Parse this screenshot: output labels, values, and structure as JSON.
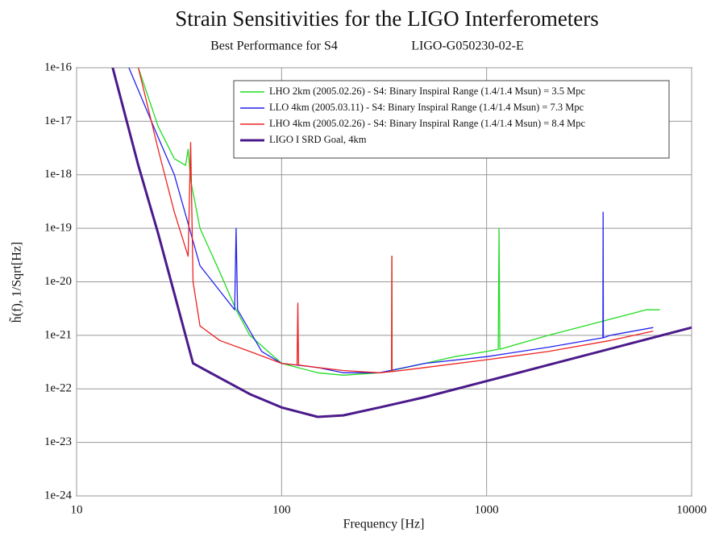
{
  "chart_data": {
    "type": "line",
    "title": "Strain Sensitivities for the LIGO Interferometers",
    "subtitle": "Best Performance for S4",
    "document_id": "LIGO-G050230-02-E",
    "xlabel": "Frequency [Hz]",
    "ylabel": "h̃(f), 1/Sqrt[Hz]",
    "xscale": "log",
    "yscale": "log",
    "xlim": [
      10,
      10000
    ],
    "ylim": [
      1e-24,
      1e-16
    ],
    "xticks": [
      10,
      100,
      1000,
      10000
    ],
    "yticks": [
      1e-16,
      1e-17,
      1e-18,
      1e-19,
      1e-20,
      1e-21,
      1e-22,
      1e-23,
      1e-24
    ],
    "grid": true,
    "legend": "upper right",
    "series": [
      {
        "name": "LHO 2km (2005.02.26) - S4: Binary Inspiral Range (1.4/1.4 Msun) = 3.5 Mpc",
        "color": "#22dd22",
        "x": [
          20,
          25,
          30,
          34,
          35,
          36,
          40,
          50,
          60,
          70,
          100,
          150,
          200,
          300,
          344,
          345,
          346,
          500,
          700,
          1000,
          1140,
          1150,
          1160,
          2000,
          3000,
          4000,
          5000,
          6000,
          7000
        ],
        "values": [
          1e-16,
          8e-18,
          2e-18,
          1.5e-18,
          3e-18,
          8e-19,
          1e-19,
          1.5e-20,
          3e-21,
          1e-21,
          3e-22,
          2e-22,
          1.8e-22,
          2e-22,
          2.2e-22,
          3e-20,
          2.2e-22,
          3e-22,
          4e-22,
          5e-22,
          5.5e-22,
          1e-19,
          5.5e-22,
          1e-21,
          1.5e-21,
          2e-21,
          2.5e-21,
          3e-21,
          3e-21
        ]
      },
      {
        "name": "LLO 4km (2005.03.11) - S4: Binary Inspiral Range (1.4/1.4 Msun) = 7.3 Mpc",
        "color": "#2222ee",
        "x": [
          18,
          25,
          30,
          40,
          59,
          60,
          61,
          80,
          100,
          150,
          200,
          300,
          500,
          1000,
          2000,
          3690,
          3700,
          3710,
          4000,
          6500
        ],
        "values": [
          1e-16,
          5e-18,
          1e-18,
          2e-20,
          3e-21,
          1e-19,
          3e-21,
          5e-22,
          3e-22,
          2.5e-22,
          2e-22,
          2e-22,
          3e-22,
          4e-22,
          6e-22,
          9e-22,
          2e-19,
          9e-22,
          1e-21,
          1.4e-21
        ]
      },
      {
        "name": "LHO 4km (2005.02.26) - S4: Binary Inspiral Range (1.4/1.4 Msun) = 8.4 Mpc",
        "color": "#ee2222",
        "x": [
          20,
          25,
          30,
          35,
          36,
          37,
          40,
          50,
          70,
          100,
          119,
          120,
          121,
          150,
          200,
          300,
          344,
          345,
          346,
          500,
          1000,
          2000,
          4000,
          6500
        ],
        "values": [
          1e-16,
          3e-18,
          2e-19,
          3e-20,
          4e-18,
          1e-20,
          1.5e-21,
          8e-22,
          5e-22,
          3e-22,
          2.8e-22,
          4e-21,
          2.8e-22,
          2.5e-22,
          2.2e-22,
          2e-22,
          2.1e-22,
          3e-20,
          2.1e-22,
          2.5e-22,
          3.5e-22,
          5e-22,
          8e-22,
          1.2e-21
        ]
      },
      {
        "name": "LIGO I SRD Goal, 4km",
        "color": "#4b1a8a",
        "x": [
          15,
          20,
          25,
          30,
          37,
          50,
          70,
          100,
          150,
          200,
          300,
          500,
          1000,
          2000,
          5000,
          10000
        ],
        "values": [
          1e-16,
          1.5e-18,
          8e-20,
          6e-21,
          3e-22,
          1.6e-22,
          8e-23,
          4.5e-23,
          3e-23,
          3.2e-23,
          4.5e-23,
          7e-23,
          1.4e-22,
          2.8e-22,
          7e-22,
          1.4e-21
        ]
      }
    ]
  }
}
